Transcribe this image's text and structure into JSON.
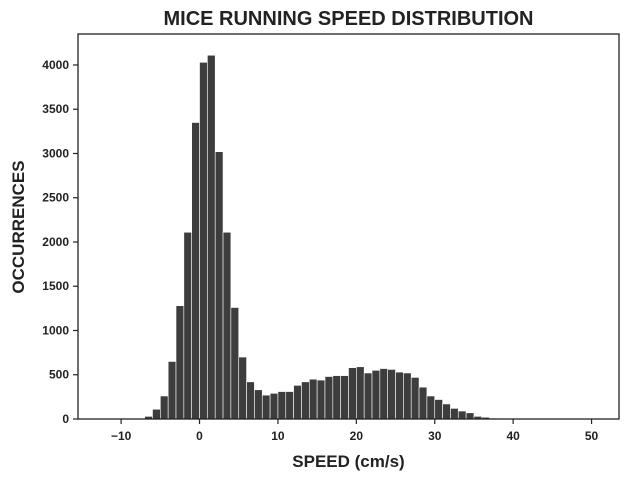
{
  "chart_data": {
    "type": "bar",
    "title": "MICE RUNNING SPEED DISTRIBUTION",
    "xlabel": "SPEED (cm/s)",
    "ylabel": "OCCURRENCES",
    "xlim": [
      -15.5,
      53.5
    ],
    "ylim": [
      0,
      4350
    ],
    "bin_width": 1,
    "x_ticks": [
      -10,
      0,
      10,
      20,
      30,
      40,
      50
    ],
    "x_tick_labels": [
      "−10",
      "0",
      "10",
      "20",
      "30",
      "40",
      "50"
    ],
    "y_ticks": [
      0,
      500,
      1000,
      1500,
      2000,
      2500,
      3000,
      3500,
      4000
    ],
    "y_tick_labels": [
      "0",
      "500",
      "1000",
      "1500",
      "2000",
      "2500",
      "3000",
      "3500",
      "4000"
    ],
    "grid": false,
    "bar_color": "#3d3d3d",
    "bins": [
      {
        "x": -6.5,
        "value": 30
      },
      {
        "x": -5.5,
        "value": 110
      },
      {
        "x": -4.5,
        "value": 260
      },
      {
        "x": -3.5,
        "value": 650
      },
      {
        "x": -2.5,
        "value": 1280
      },
      {
        "x": -1.5,
        "value": 2110
      },
      {
        "x": -0.5,
        "value": 3350
      },
      {
        "x": 0.5,
        "value": 4030
      },
      {
        "x": 1.5,
        "value": 4110
      },
      {
        "x": 2.5,
        "value": 3020
      },
      {
        "x": 3.5,
        "value": 2110
      },
      {
        "x": 4.5,
        "value": 1260
      },
      {
        "x": 5.5,
        "value": 700
      },
      {
        "x": 6.5,
        "value": 420
      },
      {
        "x": 7.5,
        "value": 330
      },
      {
        "x": 8.5,
        "value": 270
      },
      {
        "x": 9.5,
        "value": 290
      },
      {
        "x": 10.5,
        "value": 310
      },
      {
        "x": 11.5,
        "value": 310
      },
      {
        "x": 12.5,
        "value": 380
      },
      {
        "x": 13.5,
        "value": 420
      },
      {
        "x": 14.5,
        "value": 450
      },
      {
        "x": 15.5,
        "value": 440
      },
      {
        "x": 16.5,
        "value": 480
      },
      {
        "x": 17.5,
        "value": 490
      },
      {
        "x": 18.5,
        "value": 490
      },
      {
        "x": 19.5,
        "value": 580
      },
      {
        "x": 20.5,
        "value": 590
      },
      {
        "x": 21.5,
        "value": 520
      },
      {
        "x": 22.5,
        "value": 550
      },
      {
        "x": 23.5,
        "value": 570
      },
      {
        "x": 24.5,
        "value": 560
      },
      {
        "x": 25.5,
        "value": 530
      },
      {
        "x": 26.5,
        "value": 520
      },
      {
        "x": 27.5,
        "value": 470
      },
      {
        "x": 28.5,
        "value": 360
      },
      {
        "x": 29.5,
        "value": 260
      },
      {
        "x": 30.5,
        "value": 220
      },
      {
        "x": 31.5,
        "value": 170
      },
      {
        "x": 32.5,
        "value": 120
      },
      {
        "x": 33.5,
        "value": 90
      },
      {
        "x": 34.5,
        "value": 70
      },
      {
        "x": 35.5,
        "value": 30
      },
      {
        "x": 36.5,
        "value": 20
      },
      {
        "x": 37.5,
        "value": 10
      }
    ]
  }
}
